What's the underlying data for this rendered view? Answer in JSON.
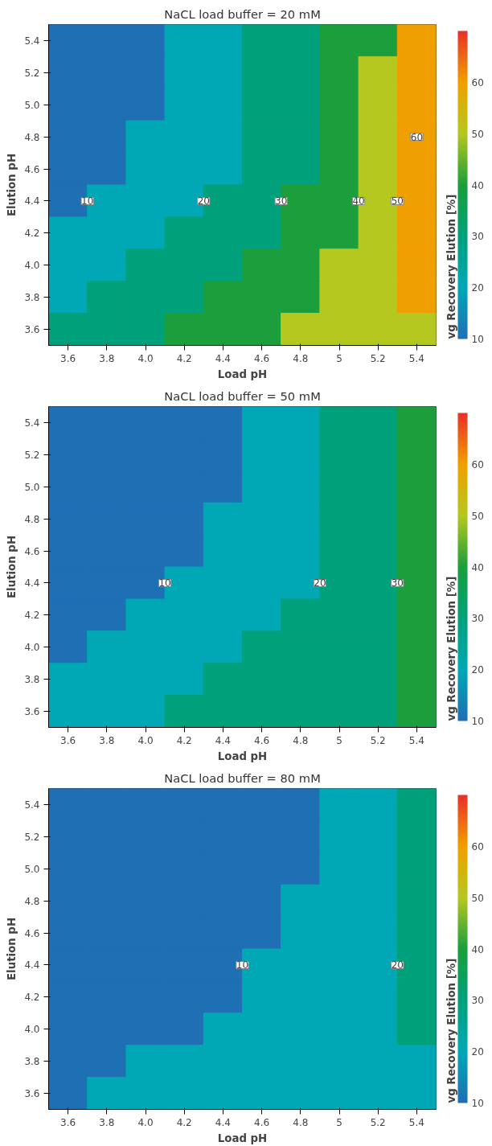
{
  "chart_data": [
    {
      "type": "heatmap",
      "title": "NaCL load buffer = 20 mM",
      "xlabel": "Load pH",
      "ylabel": "Elution pH",
      "clabel": "vg Recovery Elution [%]",
      "clim": [
        10,
        70
      ],
      "cticks": [
        10,
        20,
        30,
        40,
        50,
        60
      ],
      "colors": [
        "#1f6fb4",
        "#00a8b5",
        "#00a07a",
        "#1a9e3c",
        "#b5c820",
        "#f0a000",
        "#e8302a"
      ],
      "categories": [
        "3.6",
        "3.8",
        "4.0",
        "4.2",
        "4.4",
        "4.6",
        "4.8",
        "5",
        "5.2",
        "5.4"
      ],
      "y_categories": [
        "5.4",
        "5.2",
        "5.0",
        "4.8",
        "4.6",
        "4.4",
        "4.2",
        "4.0",
        "3.8",
        "3.6"
      ],
      "cells": [
        [
          10,
          10,
          10,
          20,
          20,
          30,
          30,
          40,
          40,
          60
        ],
        [
          10,
          10,
          10,
          20,
          20,
          30,
          30,
          40,
          50,
          60
        ],
        [
          10,
          10,
          10,
          20,
          20,
          30,
          30,
          40,
          50,
          60
        ],
        [
          10,
          10,
          20,
          20,
          20,
          30,
          30,
          40,
          50,
          60
        ],
        [
          10,
          10,
          20,
          20,
          20,
          30,
          30,
          40,
          50,
          60
        ],
        [
          10,
          20,
          20,
          20,
          30,
          30,
          40,
          40,
          50,
          60
        ],
        [
          20,
          20,
          20,
          30,
          30,
          30,
          40,
          40,
          50,
          60
        ],
        [
          20,
          20,
          30,
          30,
          30,
          40,
          40,
          50,
          50,
          60
        ],
        [
          20,
          30,
          30,
          30,
          40,
          40,
          40,
          50,
          50,
          60
        ],
        [
          30,
          30,
          30,
          40,
          40,
          40,
          50,
          50,
          50,
          50
        ]
      ],
      "annotations": [
        "10",
        "20",
        "30",
        "40",
        "50",
        "60"
      ]
    },
    {
      "type": "heatmap",
      "title": "NaCL load buffer = 50 mM",
      "xlabel": "Load pH",
      "ylabel": "Elution pH",
      "clabel": "vg Recovery Elution [%]",
      "clim": [
        10,
        70
      ],
      "cticks": [
        10,
        20,
        30,
        40,
        50,
        60
      ],
      "colors": [
        "#1f6fb4",
        "#00a8b5",
        "#00a07a",
        "#1a9e3c",
        "#b5c820",
        "#f0a000",
        "#e8302a"
      ],
      "categories": [
        "3.6",
        "3.8",
        "4.0",
        "4.2",
        "4.4",
        "4.6",
        "4.8",
        "5",
        "5.2",
        "5.4"
      ],
      "y_categories": [
        "5.4",
        "5.2",
        "5.0",
        "4.8",
        "4.6",
        "4.4",
        "4.2",
        "4.0",
        "3.8",
        "3.6"
      ],
      "cells": [
        [
          10,
          10,
          10,
          10,
          10,
          20,
          20,
          30,
          30,
          40
        ],
        [
          10,
          10,
          10,
          10,
          10,
          20,
          20,
          30,
          30,
          40
        ],
        [
          10,
          10,
          10,
          10,
          10,
          20,
          20,
          30,
          30,
          40
        ],
        [
          10,
          10,
          10,
          10,
          20,
          20,
          20,
          30,
          30,
          40
        ],
        [
          10,
          10,
          10,
          10,
          20,
          20,
          20,
          30,
          30,
          40
        ],
        [
          10,
          10,
          10,
          20,
          20,
          20,
          20,
          30,
          30,
          40
        ],
        [
          10,
          10,
          20,
          20,
          20,
          20,
          30,
          30,
          30,
          40
        ],
        [
          10,
          20,
          20,
          20,
          20,
          30,
          30,
          30,
          30,
          40
        ],
        [
          20,
          20,
          20,
          20,
          30,
          30,
          30,
          30,
          30,
          40
        ],
        [
          20,
          20,
          20,
          30,
          30,
          30,
          30,
          30,
          30,
          40
        ]
      ],
      "annotations": [
        "10",
        "20",
        "30"
      ]
    },
    {
      "type": "heatmap",
      "title": "NaCL load buffer = 80 mM",
      "xlabel": "Load pH",
      "ylabel": "Elution pH",
      "clabel": "vg Recovery Elution [%]",
      "clim": [
        10,
        70
      ],
      "cticks": [
        10,
        20,
        30,
        40,
        50,
        60
      ],
      "colors": [
        "#1f6fb4",
        "#00a8b5",
        "#00a07a",
        "#1a9e3c",
        "#b5c820",
        "#f0a000",
        "#e8302a"
      ],
      "categories": [
        "3.6",
        "3.8",
        "4.0",
        "4.2",
        "4.4",
        "4.6",
        "4.8",
        "5",
        "5.2",
        "5.4"
      ],
      "y_categories": [
        "5.4",
        "5.2",
        "5.0",
        "4.8",
        "4.6",
        "4.4",
        "4.2",
        "4.0",
        "3.8",
        "3.6"
      ],
      "cells": [
        [
          10,
          10,
          10,
          10,
          10,
          10,
          10,
          20,
          20,
          30
        ],
        [
          10,
          10,
          10,
          10,
          10,
          10,
          10,
          20,
          20,
          30
        ],
        [
          10,
          10,
          10,
          10,
          10,
          10,
          10,
          20,
          20,
          30
        ],
        [
          10,
          10,
          10,
          10,
          10,
          10,
          20,
          20,
          20,
          30
        ],
        [
          10,
          10,
          10,
          10,
          10,
          10,
          20,
          20,
          20,
          30
        ],
        [
          10,
          10,
          10,
          10,
          10,
          20,
          20,
          20,
          20,
          30
        ],
        [
          10,
          10,
          10,
          10,
          10,
          20,
          20,
          20,
          20,
          30
        ],
        [
          10,
          10,
          10,
          10,
          20,
          20,
          20,
          20,
          20,
          30
        ],
        [
          10,
          10,
          20,
          20,
          20,
          20,
          20,
          20,
          20,
          20
        ],
        [
          10,
          20,
          20,
          20,
          20,
          20,
          20,
          20,
          20,
          20
        ]
      ],
      "annotations": [
        "10",
        "20"
      ]
    }
  ]
}
